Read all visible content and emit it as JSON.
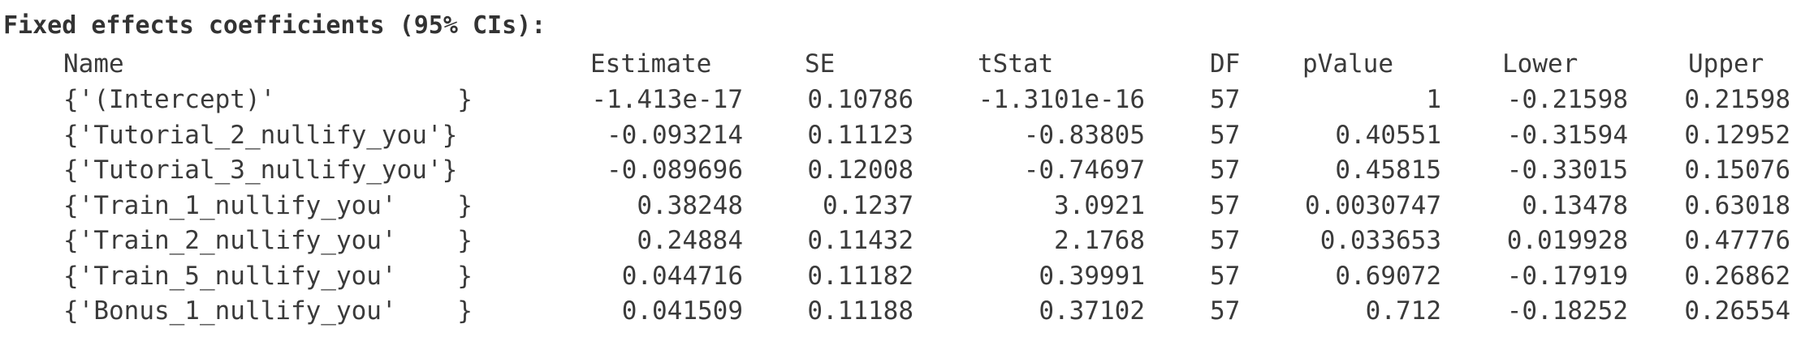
{
  "title": "Fixed effects coefficients (95% CIs):",
  "table": {
    "headers": {
      "name": "Name",
      "estimate": "Estimate",
      "se": "SE",
      "tstat": "tStat",
      "df": "DF",
      "pvalue": "pValue",
      "lower": "Lower",
      "upper": "Upper"
    },
    "rows": [
      {
        "name": "{'(Intercept)'            }",
        "estimate": "-1.413e-17",
        "se": "0.10786",
        "tstat": "-1.3101e-16",
        "df": "57",
        "pvalue": "1",
        "lower": "-0.21598",
        "upper": "0.21598"
      },
      {
        "name": "{'Tutorial_2_nullify_you'}",
        "estimate": "-0.093214",
        "se": "0.11123",
        "tstat": "-0.83805",
        "df": "57",
        "pvalue": "0.40551",
        "lower": "-0.31594",
        "upper": "0.12952"
      },
      {
        "name": "{'Tutorial_3_nullify_you'}",
        "estimate": "-0.089696",
        "se": "0.12008",
        "tstat": "-0.74697",
        "df": "57",
        "pvalue": "0.45815",
        "lower": "-0.33015",
        "upper": "0.15076"
      },
      {
        "name": "{'Train_1_nullify_you'    }",
        "estimate": "0.38248",
        "se": "0.1237",
        "tstat": "3.0921",
        "df": "57",
        "pvalue": "0.0030747",
        "lower": "0.13478",
        "upper": "0.63018"
      },
      {
        "name": "{'Train_2_nullify_you'    }",
        "estimate": "0.24884",
        "se": "0.11432",
        "tstat": "2.1768",
        "df": "57",
        "pvalue": "0.033653",
        "lower": "0.019928",
        "upper": "0.47776"
      },
      {
        "name": "{'Train_5_nullify_you'    }",
        "estimate": "0.044716",
        "se": "0.11182",
        "tstat": "0.39991",
        "df": "57",
        "pvalue": "0.69072",
        "lower": "-0.17919",
        "upper": "0.26862"
      },
      {
        "name": "{'Bonus_1_nullify_you'    }",
        "estimate": "0.041509",
        "se": "0.11188",
        "tstat": "0.37102",
        "df": "57",
        "pvalue": "0.712",
        "lower": "-0.18252",
        "upper": "0.26554"
      }
    ]
  }
}
